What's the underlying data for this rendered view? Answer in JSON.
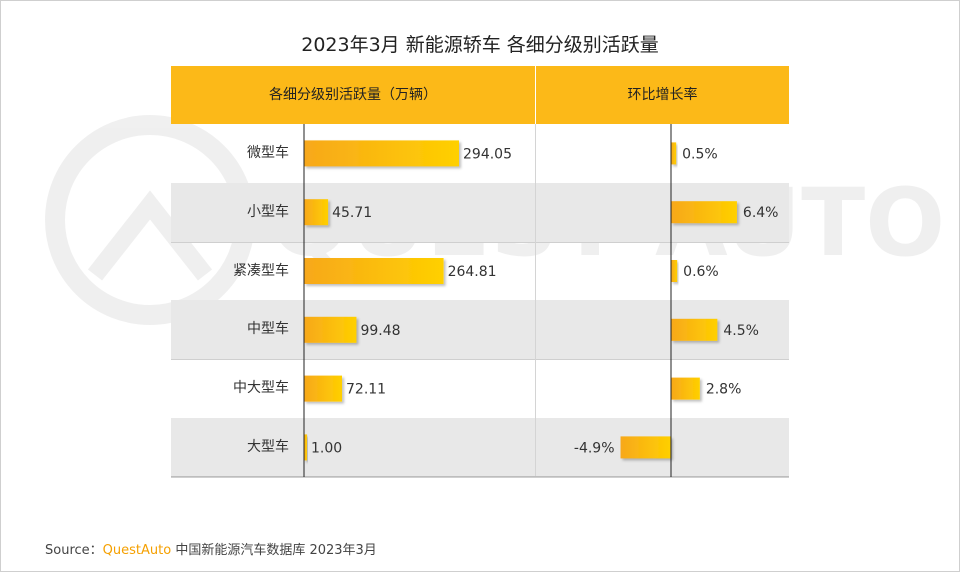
{
  "title": "2023年3月 新能源轿车 各细分级别活跃量",
  "header": {
    "col1": "各细分级别活跃量（万辆）",
    "col2": "环比增长率"
  },
  "chart_data": {
    "type": "bar",
    "title": "2023年3月 新能源轿车 各细分级别活跃量",
    "categories": [
      "微型车",
      "小型车",
      "紧凑型车",
      "中型车",
      "中大型车",
      "大型车"
    ],
    "series": [
      {
        "name": "各细分级别活跃量（万辆）",
        "values": [
          294.05,
          45.71,
          264.81,
          99.48,
          72.11,
          1.0
        ],
        "labels": [
          "294.05",
          "45.71",
          "264.81",
          "99.48",
          "72.11",
          "1.00"
        ]
      },
      {
        "name": "环比增长率",
        "values": [
          0.5,
          6.4,
          0.6,
          4.5,
          2.8,
          -4.9
        ],
        "labels": [
          "0.5%",
          "6.4%",
          "0.6%",
          "4.5%",
          "2.8%",
          "-4.9%"
        ]
      }
    ]
  },
  "source": {
    "prefix": "Source：",
    "brand": "QuestAuto",
    "text": " 中国新能源汽车数据库 2023年3月"
  },
  "watermark": "QUEST AUTO",
  "colors": {
    "header": "#fcb918",
    "bar_start": "#f7a81b",
    "bar_end": "#ffd000",
    "row_alt": "#e8e8e8",
    "brand": "#f5a000"
  }
}
